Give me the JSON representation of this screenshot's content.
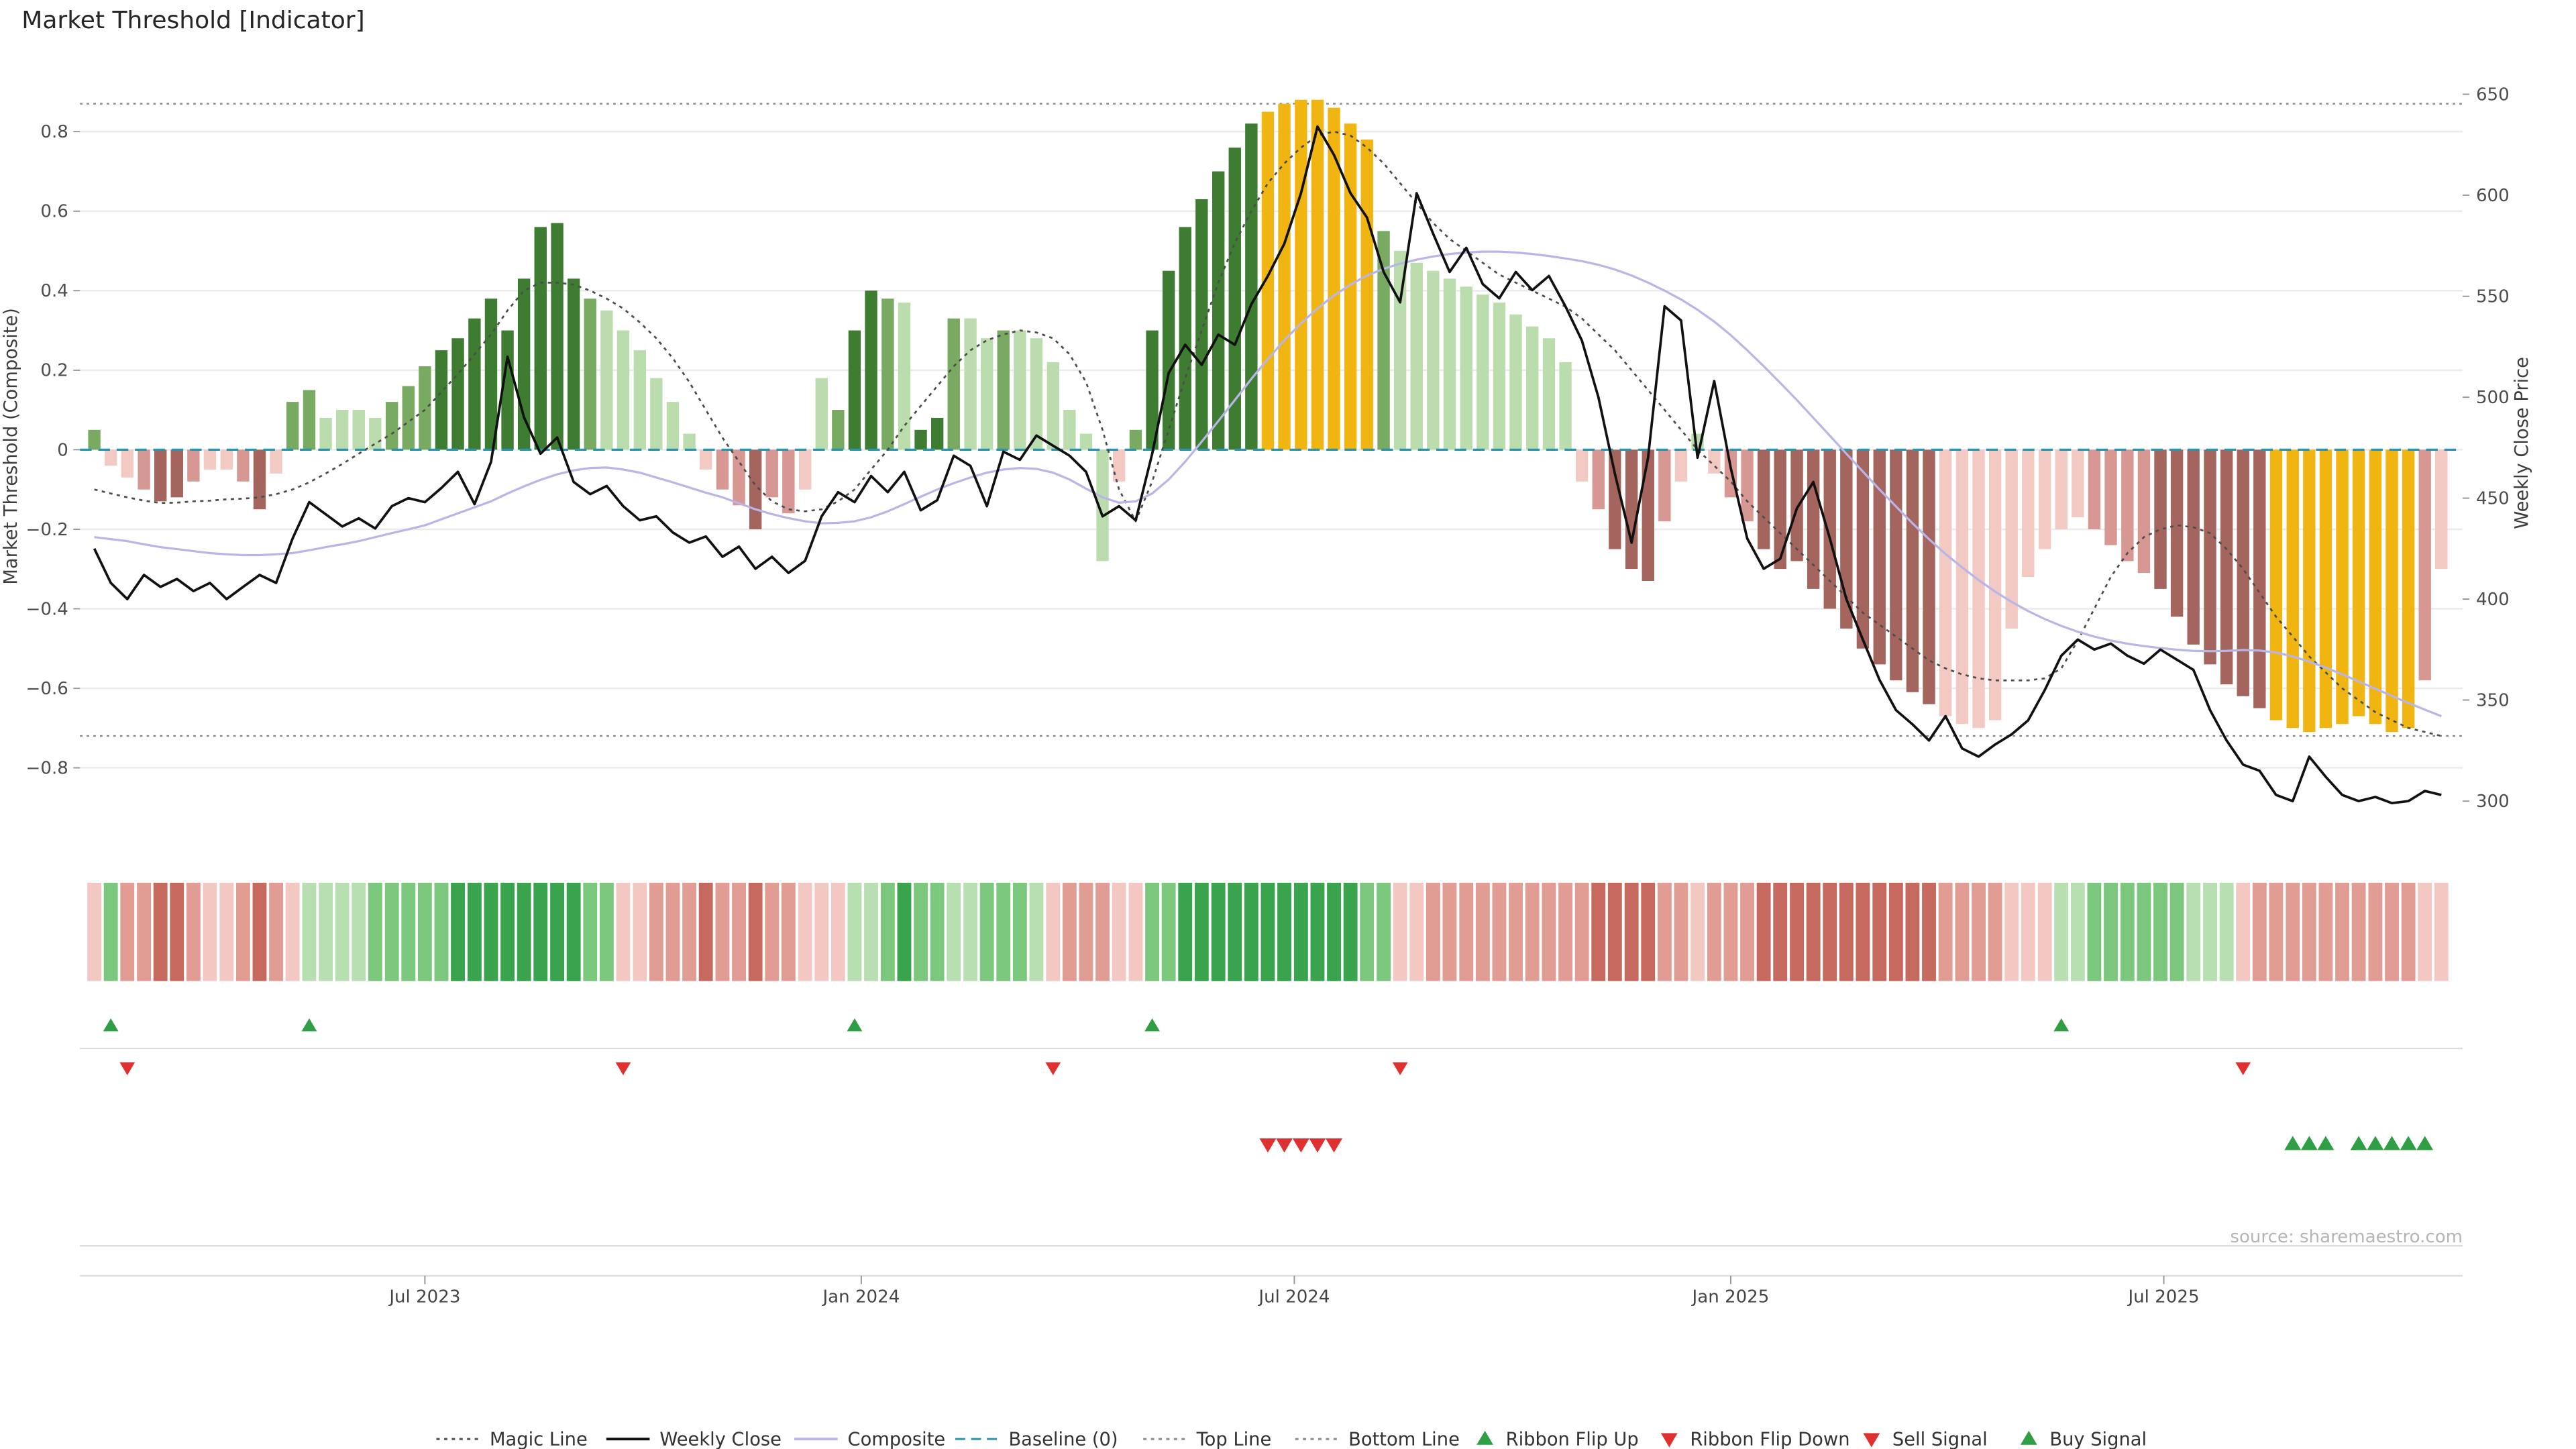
{
  "title": "Market Threshold [Indicator]",
  "source": "source: sharemaestro.com",
  "legend": [
    {
      "label": "Magic Line",
      "marker": "dotted",
      "color": "#4d4d4d"
    },
    {
      "label": "Weekly Close",
      "marker": "solid",
      "color": "#111111"
    },
    {
      "label": "Composite",
      "marker": "solid",
      "color": "#b9b5e6"
    },
    {
      "label": "Baseline (0)",
      "marker": "dashed",
      "color": "#2e93a8"
    },
    {
      "label": "Top Line",
      "marker": "dotted",
      "color": "#8a8a8a"
    },
    {
      "label": "Bottom Line",
      "marker": "dotted",
      "color": "#8a8a8a"
    },
    {
      "label": "Ribbon Flip Up",
      "marker": "triangle-up",
      "color": "#2f9e44"
    },
    {
      "label": "Ribbon Flip Down",
      "marker": "triangle-down",
      "color": "#e03131"
    },
    {
      "label": "Sell Signal",
      "marker": "triangle-down",
      "color": "#e03131"
    },
    {
      "label": "Buy Signal",
      "marker": "triangle-up",
      "color": "#2f9e44"
    }
  ],
  "chart_data": {
    "type": "bar",
    "subtype": "weekly composite threshold histogram with overlaid lines, color ribbon and trade signals",
    "n_points": 143,
    "x_unit": "week",
    "x_ticks": [
      {
        "week": 20,
        "label": "Jul 2023"
      },
      {
        "week": 46.4,
        "label": "Jan 2024"
      },
      {
        "week": 72.6,
        "label": "Jul 2024"
      },
      {
        "week": 99,
        "label": "Jan 2025"
      },
      {
        "week": 125.2,
        "label": "Jul 2025"
      }
    ],
    "left_axis": {
      "label": "Market Threshold (Composite)",
      "range": [
        -0.97,
        0.99
      ],
      "ticks": [
        {
          "v": 0.8,
          "label": "0.8"
        },
        {
          "v": 0.6,
          "label": "0.6"
        },
        {
          "v": 0.4,
          "label": "0.4"
        },
        {
          "v": 0.2,
          "label": "0.2"
        },
        {
          "v": 0.0,
          "label": "0"
        },
        {
          "v": -0.2,
          "label": "−0.2"
        },
        {
          "v": -0.4,
          "label": "−0.4"
        },
        {
          "v": -0.6,
          "label": "−0.6"
        },
        {
          "v": -0.8,
          "label": "−0.8"
        }
      ]
    },
    "right_axis": {
      "label": "Weekly Close Price",
      "range": [
        295,
        660
      ],
      "ticks": [
        {
          "v": 650,
          "label": "650"
        },
        {
          "v": 600,
          "label": "600"
        },
        {
          "v": 550,
          "label": "550"
        },
        {
          "v": 500,
          "label": "500"
        },
        {
          "v": 450,
          "label": "450"
        },
        {
          "v": 400,
          "label": "400"
        },
        {
          "v": 350,
          "label": "350"
        },
        {
          "v": 300,
          "label": "300"
        }
      ]
    },
    "reference_lines": {
      "top_line": 0.87,
      "bottom_line": -0.72,
      "baseline": 0
    },
    "threshold_bars": {
      "values": [
        0.05,
        -0.04,
        -0.07,
        -0.1,
        -0.13,
        -0.12,
        -0.08,
        -0.05,
        -0.05,
        -0.08,
        -0.15,
        -0.06,
        0.12,
        0.15,
        0.08,
        0.1,
        0.1,
        0.08,
        0.12,
        0.16,
        0.21,
        0.25,
        0.28,
        0.33,
        0.38,
        0.3,
        0.43,
        0.56,
        0.57,
        0.43,
        0.38,
        0.35,
        0.3,
        0.25,
        0.18,
        0.12,
        0.04,
        -0.05,
        -0.1,
        -0.14,
        -0.2,
        -0.12,
        -0.16,
        -0.1,
        0.18,
        0.1,
        0.3,
        0.4,
        0.38,
        0.37,
        0.05,
        0.08,
        0.33,
        0.33,
        0.28,
        0.3,
        0.3,
        0.28,
        0.22,
        0.1,
        0.04,
        -0.28,
        -0.08,
        0.05,
        0.3,
        0.45,
        0.56,
        0.63,
        0.7,
        0.76,
        0.82,
        0.85,
        0.87,
        0.88,
        0.88,
        0.86,
        0.82,
        0.78,
        0.55,
        0.5,
        0.47,
        0.45,
        0.43,
        0.41,
        0.39,
        0.37,
        0.34,
        0.31,
        0.28,
        0.22,
        -0.08,
        -0.15,
        -0.25,
        -0.3,
        -0.33,
        -0.18,
        -0.08,
        0.04,
        -0.06,
        -0.12,
        -0.18,
        -0.25,
        -0.3,
        -0.28,
        -0.35,
        -0.4,
        -0.45,
        -0.5,
        -0.54,
        -0.58,
        -0.61,
        -0.64,
        -0.67,
        -0.69,
        -0.7,
        -0.68,
        -0.45,
        -0.32,
        -0.25,
        -0.2,
        -0.17,
        -0.2,
        -0.24,
        -0.28,
        -0.31,
        -0.35,
        -0.42,
        -0.49,
        -0.54,
        -0.59,
        -0.62,
        -0.65,
        -0.68,
        -0.7,
        -0.71,
        -0.7,
        -0.69,
        -0.67,
        -0.69,
        -0.71,
        -0.7,
        -0.58,
        -0.3
      ],
      "colors": [
        "g2",
        "r1",
        "r1",
        "r2",
        "r3",
        "r3",
        "r2",
        "r1",
        "r1",
        "r2",
        "r3",
        "r1",
        "g2",
        "g2",
        "g1",
        "g1",
        "g1",
        "g1",
        "g2",
        "g2",
        "g2",
        "g3",
        "g3",
        "g3",
        "g3",
        "g3",
        "g3",
        "g3",
        "g3",
        "g3",
        "g2",
        "g1",
        "g1",
        "g1",
        "g1",
        "g1",
        "g1",
        "r1",
        "r2",
        "r2",
        "r3",
        "r2",
        "r2",
        "r1",
        "g1",
        "g2",
        "g3",
        "g3",
        "g2",
        "g1",
        "g3",
        "g3",
        "g2",
        "g1",
        "g1",
        "g2",
        "g1",
        "g1",
        "g1",
        "g1",
        "g1",
        "g1",
        "r1",
        "g2",
        "g3",
        "g3",
        "g3",
        "g3",
        "g3",
        "g3",
        "g3",
        "gold",
        "gold",
        "gold",
        "gold",
        "gold",
        "gold",
        "gold",
        "g2",
        "g1",
        "g1",
        "g1",
        "g1",
        "g1",
        "g1",
        "g1",
        "g1",
        "g1",
        "g1",
        "g1",
        "r1",
        "r2",
        "r3",
        "r3",
        "r3",
        "r2",
        "r1",
        "g1",
        "r1",
        "r2",
        "r2",
        "r3",
        "r3",
        "r3",
        "r3",
        "r3",
        "r3",
        "r3",
        "r3",
        "r3",
        "r3",
        "r3",
        "r1",
        "r1",
        "r1",
        "r1",
        "r1",
        "r1",
        "r1",
        "r1",
        "r1",
        "r2",
        "r2",
        "r2",
        "r2",
        "r3",
        "r3",
        "r3",
        "r3",
        "r3",
        "r3",
        "r3",
        "gold",
        "gold",
        "gold",
        "gold",
        "gold",
        "gold",
        "gold",
        "gold",
        "gold",
        "r2",
        "r1"
      ]
    },
    "series": [
      {
        "name": "Magic Line",
        "axis": "left",
        "style": "dotted",
        "color_key": "magic",
        "values": [
          -0.1,
          -0.11,
          -0.12,
          -0.128,
          -0.134,
          -0.133,
          -0.13,
          -0.128,
          -0.125,
          -0.123,
          -0.12,
          -0.112,
          -0.1,
          -0.082,
          -0.06,
          -0.036,
          -0.01,
          0.015,
          0.04,
          0.07,
          0.1,
          0.145,
          0.19,
          0.24,
          0.29,
          0.35,
          0.4,
          0.42,
          0.42,
          0.415,
          0.4,
          0.38,
          0.355,
          0.32,
          0.28,
          0.23,
          0.17,
          0.1,
          0.03,
          -0.03,
          -0.09,
          -0.13,
          -0.15,
          -0.155,
          -0.15,
          -0.13,
          -0.1,
          -0.05,
          0.0,
          0.06,
          0.11,
          0.16,
          0.21,
          0.25,
          0.275,
          0.29,
          0.3,
          0.295,
          0.28,
          0.24,
          0.17,
          0.05,
          -0.1,
          -0.18,
          -0.08,
          0.05,
          0.18,
          0.3,
          0.42,
          0.52,
          0.6,
          0.67,
          0.72,
          0.76,
          0.79,
          0.8,
          0.79,
          0.76,
          0.72,
          0.67,
          0.62,
          0.57,
          0.53,
          0.5,
          0.47,
          0.44,
          0.42,
          0.4,
          0.38,
          0.36,
          0.33,
          0.29,
          0.25,
          0.2,
          0.15,
          0.1,
          0.05,
          0.0,
          -0.04,
          -0.08,
          -0.13,
          -0.17,
          -0.21,
          -0.25,
          -0.29,
          -0.33,
          -0.37,
          -0.41,
          -0.44,
          -0.47,
          -0.5,
          -0.53,
          -0.55,
          -0.565,
          -0.575,
          -0.58,
          -0.58,
          -0.58,
          -0.575,
          -0.55,
          -0.48,
          -0.4,
          -0.32,
          -0.26,
          -0.22,
          -0.2,
          -0.19,
          -0.195,
          -0.21,
          -0.25,
          -0.3,
          -0.36,
          -0.42,
          -0.47,
          -0.52,
          -0.56,
          -0.6,
          -0.63,
          -0.66,
          -0.68,
          -0.7,
          -0.71,
          -0.72
        ]
      },
      {
        "name": "Composite",
        "axis": "left",
        "style": "solid",
        "color_key": "composite",
        "values": [
          -0.22,
          -0.225,
          -0.23,
          -0.238,
          -0.245,
          -0.25,
          -0.255,
          -0.26,
          -0.263,
          -0.265,
          -0.265,
          -0.263,
          -0.26,
          -0.253,
          -0.245,
          -0.238,
          -0.23,
          -0.22,
          -0.21,
          -0.2,
          -0.19,
          -0.175,
          -0.16,
          -0.145,
          -0.13,
          -0.11,
          -0.092,
          -0.076,
          -0.062,
          -0.052,
          -0.046,
          -0.045,
          -0.05,
          -0.058,
          -0.07,
          -0.082,
          -0.095,
          -0.108,
          -0.12,
          -0.135,
          -0.15,
          -0.162,
          -0.172,
          -0.18,
          -0.185,
          -0.184,
          -0.18,
          -0.17,
          -0.155,
          -0.137,
          -0.118,
          -0.1,
          -0.084,
          -0.07,
          -0.058,
          -0.05,
          -0.046,
          -0.048,
          -0.058,
          -0.075,
          -0.098,
          -0.12,
          -0.133,
          -0.13,
          -0.11,
          -0.075,
          -0.03,
          0.02,
          0.072,
          0.125,
          0.178,
          0.228,
          0.275,
          0.318,
          0.355,
          0.388,
          0.415,
          0.438,
          0.455,
          0.468,
          0.478,
          0.486,
          0.492,
          0.496,
          0.498,
          0.498,
          0.496,
          0.492,
          0.487,
          0.481,
          0.474,
          0.465,
          0.453,
          0.438,
          0.42,
          0.4,
          0.378,
          0.352,
          0.322,
          0.288,
          0.25,
          0.21,
          0.168,
          0.125,
          0.08,
          0.035,
          -0.01,
          -0.055,
          -0.1,
          -0.143,
          -0.185,
          -0.225,
          -0.262,
          -0.296,
          -0.328,
          -0.357,
          -0.383,
          -0.406,
          -0.426,
          -0.443,
          -0.458,
          -0.47,
          -0.48,
          -0.488,
          -0.494,
          -0.499,
          -0.503,
          -0.506,
          -0.507,
          -0.506,
          -0.504,
          -0.505,
          -0.51,
          -0.52,
          -0.533,
          -0.548,
          -0.565,
          -0.583,
          -0.601,
          -0.619,
          -0.637,
          -0.654,
          -0.67
        ]
      },
      {
        "name": "Weekly Close",
        "axis": "right",
        "style": "solid",
        "color_key": "weekly_close",
        "values": [
          425,
          408,
          400,
          412,
          406,
          410,
          404,
          408,
          400,
          406,
          412,
          408,
          430,
          448,
          442,
          436,
          440,
          435,
          446,
          450,
          448,
          455,
          463,
          447,
          468,
          520,
          490,
          472,
          480,
          458,
          452,
          456,
          446,
          439,
          441,
          433,
          428,
          431,
          421,
          426,
          415,
          421,
          413,
          419,
          441,
          453,
          448,
          461,
          453,
          463,
          444,
          449,
          471,
          466,
          446,
          473,
          469,
          481,
          476,
          471,
          463,
          441,
          446,
          439,
          472,
          512,
          526,
          516,
          531,
          526,
          546,
          560,
          576,
          601,
          634,
          620,
          601,
          589,
          562,
          547,
          601,
          581,
          562,
          574,
          556,
          549,
          562,
          553,
          560,
          545,
          528,
          500,
          462,
          428,
          470,
          545,
          538,
          470,
          508,
          465,
          430,
          415,
          420,
          445,
          458,
          430,
          400,
          380,
          360,
          345,
          338,
          330,
          342,
          326,
          322,
          328,
          333,
          340,
          355,
          372,
          380,
          375,
          378,
          372,
          368,
          375,
          370,
          365,
          345,
          330,
          318,
          315,
          303,
          300,
          322,
          312,
          303,
          300,
          302,
          299,
          300,
          305,
          303
        ]
      }
    ],
    "ribbon": [
      "r1",
      "g2",
      "r2",
      "r2",
      "r3",
      "r3",
      "r2",
      "r1",
      "r1",
      "r2",
      "r3",
      "r2",
      "r1",
      "g1",
      "g1",
      "g1",
      "g1",
      "g2",
      "g2",
      "g2",
      "g2",
      "g2",
      "g3",
      "g3",
      "g3",
      "g3",
      "g3",
      "g3",
      "g3",
      "g3",
      "g2",
      "g2",
      "r1",
      "r1",
      "r2",
      "r2",
      "r2",
      "r3",
      "r2",
      "r2",
      "r3",
      "r2",
      "r2",
      "r1",
      "r1",
      "r1",
      "g1",
      "g1",
      "g2",
      "g3",
      "g2",
      "g2",
      "g1",
      "g1",
      "g2",
      "g2",
      "g2",
      "g1",
      "r1",
      "r2",
      "r2",
      "r2",
      "r1",
      "r1",
      "g2",
      "g2",
      "g3",
      "g3",
      "g3",
      "g3",
      "g3",
      "g3",
      "g3",
      "g3",
      "g3",
      "g3",
      "g3",
      "g2",
      "g2",
      "r1",
      "r1",
      "r2",
      "r2",
      "r2",
      "r2",
      "r2",
      "r2",
      "r2",
      "r2",
      "r2",
      "r2",
      "r3",
      "r3",
      "r3",
      "r3",
      "r2",
      "r2",
      "r1",
      "r2",
      "r2",
      "r2",
      "r3",
      "r3",
      "r3",
      "r3",
      "r3",
      "r3",
      "r3",
      "r3",
      "r3",
      "r3",
      "r3",
      "r2",
      "r2",
      "r2",
      "r2",
      "r1",
      "r1",
      "r1",
      "g1",
      "g1",
      "g2",
      "g2",
      "g2",
      "g2",
      "g2",
      "g2",
      "g1",
      "g1",
      "g1",
      "r1",
      "r2",
      "r2",
      "r2",
      "r2",
      "r2",
      "r2",
      "r2",
      "r2",
      "r2",
      "r2",
      "r1",
      "r1"
    ],
    "signals": {
      "ribbon_flip_up_weeks": [
        1,
        13,
        46,
        64,
        119
      ],
      "ribbon_flip_down_weeks": [
        2,
        32,
        58,
        79,
        130
      ],
      "sell_weeks": [
        71,
        72,
        73,
        74,
        75
      ],
      "buy_weeks": [
        133,
        134,
        135,
        137,
        138,
        139,
        140,
        141
      ]
    },
    "palette": {
      "g3": "#3d7c31",
      "g2": "#79aa62",
      "g1": "#bbdcad",
      "r1": "#f2c9c3",
      "r2": "#d79792",
      "r3": "#a3655e",
      "gold": "#f1b512",
      "weekly_close": "#111111",
      "composite": "#b9b5e6",
      "magic": "#4d4d4d",
      "baseline": "#2e93a8",
      "up": "#2f9e44",
      "down": "#e03131",
      "grid": "#ebebeb",
      "ref": "#8a8a8a"
    },
    "ribbon_palette": {
      "g3": "#3aa34e",
      "g2": "#7cc77e",
      "g1": "#b8dfb2",
      "r1": "#f3c8c2",
      "r2": "#e19d94",
      "r3": "#c66a60"
    }
  }
}
